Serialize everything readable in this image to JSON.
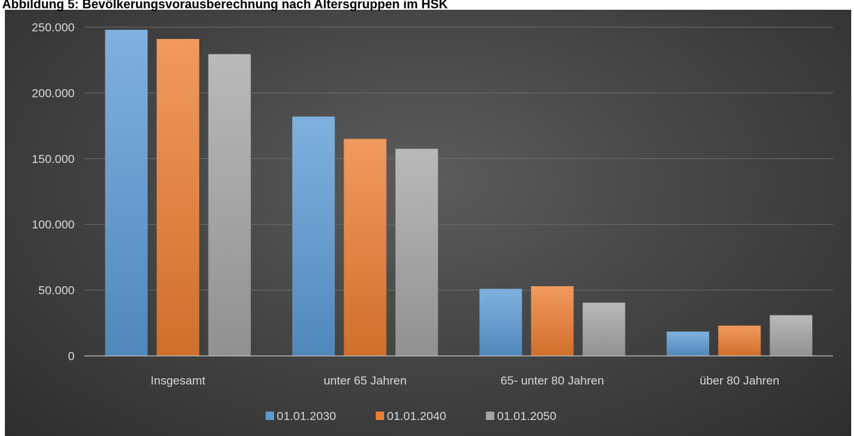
{
  "chart_data": {
    "type": "bar",
    "title": "Abbildung 5: Bevölkerungsvorausberechnung nach Altersgruppen im HSK",
    "categories": [
      "Insgesamt",
      "unter 65 Jahren",
      "65- unter 80 Jahren",
      "über 80 Jahren"
    ],
    "series": [
      {
        "name": "01.01.2030",
        "color": "#5b9bd5",
        "values": [
          248000,
          182000,
          51000,
          18500
        ]
      },
      {
        "name": "01.01.2040",
        "color": "#ed7d31",
        "values": [
          241000,
          165000,
          53000,
          23000
        ]
      },
      {
        "name": "01.01.2050",
        "color": "#a5a5a5",
        "values": [
          229500,
          157500,
          40500,
          31000
        ]
      }
    ],
    "yticks": [
      "0",
      "50.000",
      "100.000",
      "150.000",
      "200.000",
      "250.000"
    ],
    "ylim": [
      0,
      250000
    ],
    "grid": true,
    "legend_position": "bottom"
  }
}
